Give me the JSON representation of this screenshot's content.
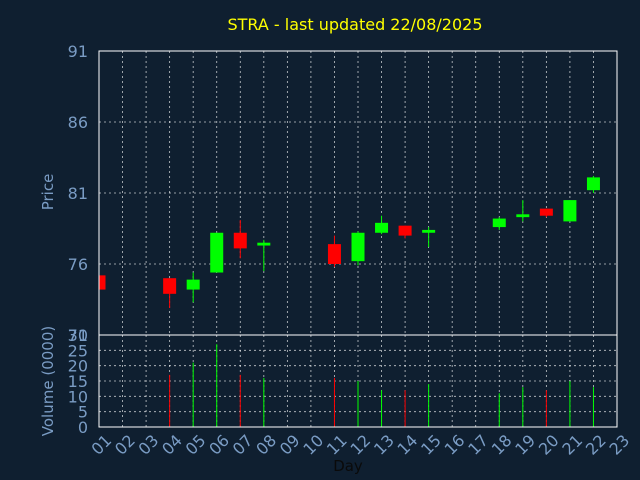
{
  "chart_data": {
    "type": "candlestick",
    "title": "STRA - last updated 22/08/2025",
    "colors": {
      "background": "#0f1f30",
      "up": "#00ff00",
      "down": "#ff0000",
      "title": "#ffff00",
      "axis_text": "#7a9cc4",
      "grid": "#ffffff"
    },
    "price_panel": {
      "ylabel": "Price",
      "ylim": [
        71,
        91
      ],
      "yticks": [
        "91",
        "86",
        "81",
        "76",
        "71"
      ]
    },
    "volume_panel": {
      "ylabel": "Volume (0000)",
      "ylim": [
        0,
        30
      ],
      "yticks": [
        "30",
        "25",
        "20",
        "15",
        "10",
        "5",
        "0"
      ]
    },
    "xlabel": "Day",
    "x_ticks": [
      "01",
      "02",
      "03",
      "04",
      "05",
      "06",
      "07",
      "08",
      "09",
      "10",
      "11",
      "12",
      "13",
      "14",
      "15",
      "16",
      "17",
      "18",
      "19",
      "20",
      "21",
      "22",
      "23"
    ],
    "grid": true,
    "candles": [
      {
        "day": "01",
        "open": 75.2,
        "high": 75.2,
        "low": 74.2,
        "close": 74.2,
        "volume": 0
      },
      {
        "day": "04",
        "open": 75.0,
        "high": 75.0,
        "low": 72.9,
        "close": 73.9,
        "volume": 17
      },
      {
        "day": "05",
        "open": 74.2,
        "high": 75.4,
        "low": 73.3,
        "close": 74.9,
        "volume": 21
      },
      {
        "day": "06",
        "open": 75.4,
        "high": 78.2,
        "low": 75.4,
        "close": 78.2,
        "volume": 27
      },
      {
        "day": "07",
        "open": 78.2,
        "high": 79.1,
        "low": 76.4,
        "close": 77.1,
        "volume": 17
      },
      {
        "day": "08",
        "open": 77.3,
        "high": 77.7,
        "low": 75.5,
        "close": 77.5,
        "volume": 16
      },
      {
        "day": "11",
        "open": 77.4,
        "high": 78.0,
        "low": 75.8,
        "close": 76.0,
        "volume": 16
      },
      {
        "day": "12",
        "open": 76.2,
        "high": 78.3,
        "low": 75.9,
        "close": 78.2,
        "volume": 15
      },
      {
        "day": "13",
        "open": 78.2,
        "high": 79.4,
        "low": 78.1,
        "close": 78.9,
        "volume": 12
      },
      {
        "day": "14",
        "open": 78.7,
        "high": 78.7,
        "low": 77.8,
        "close": 78.0,
        "volume": 12
      },
      {
        "day": "15",
        "open": 78.2,
        "high": 78.6,
        "low": 77.2,
        "close": 78.4,
        "volume": 14
      },
      {
        "day": "18",
        "open": 78.6,
        "high": 79.3,
        "low": 78.4,
        "close": 79.2,
        "volume": 11
      },
      {
        "day": "19",
        "open": 79.3,
        "high": 80.5,
        "low": 79.0,
        "close": 79.5,
        "volume": 13
      },
      {
        "day": "20",
        "open": 79.9,
        "high": 79.9,
        "low": 79.3,
        "close": 79.4,
        "volume": 12
      },
      {
        "day": "21",
        "open": 79.0,
        "high": 80.5,
        "low": 79.0,
        "close": 80.5,
        "volume": 15
      },
      {
        "day": "22",
        "open": 81.2,
        "high": 82.2,
        "low": 81.0,
        "close": 82.1,
        "volume": 13
      }
    ]
  }
}
